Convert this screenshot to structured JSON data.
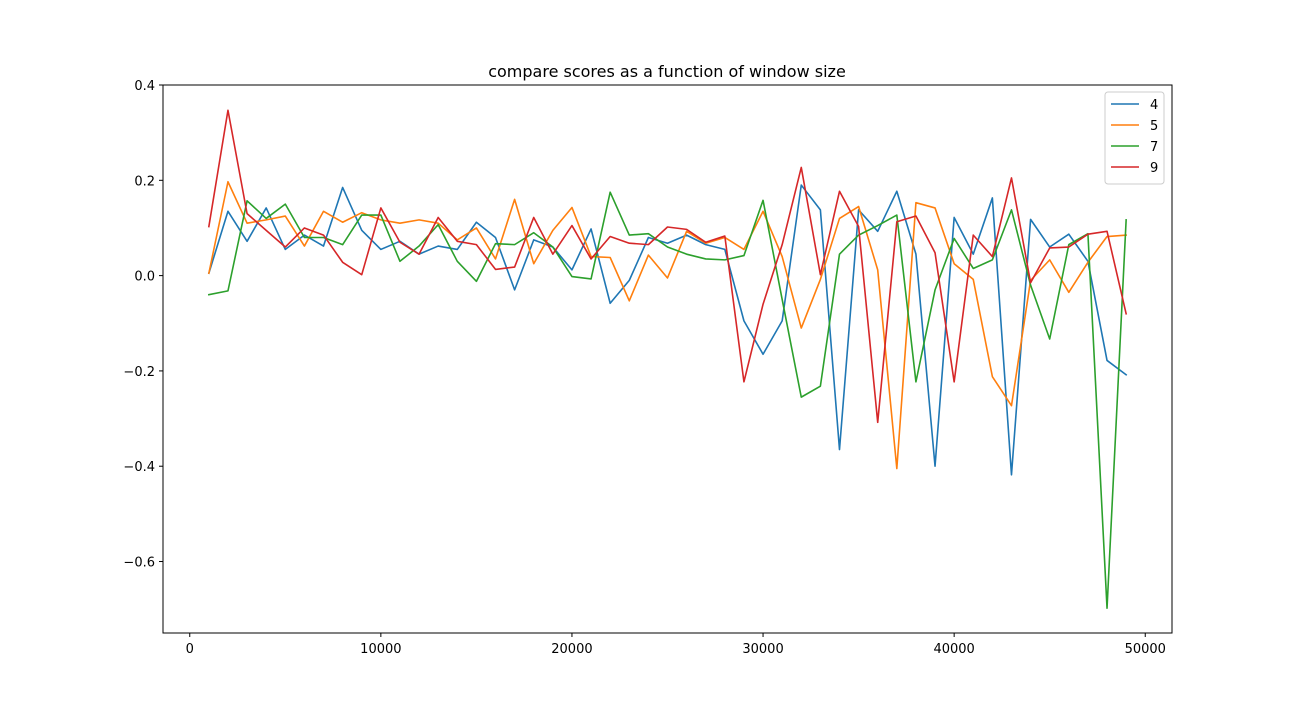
{
  "chart_data": {
    "type": "line",
    "title": "compare scores as a function of window size",
    "xlabel": "",
    "ylabel": "",
    "xlim": [
      -1400,
      51400
    ],
    "ylim": [
      -0.75,
      0.4
    ],
    "xticks": [
      0,
      10000,
      20000,
      30000,
      40000,
      50000
    ],
    "xtick_labels": [
      "0",
      "10000",
      "20000",
      "30000",
      "40000",
      "50000"
    ],
    "yticks": [
      0.4,
      0.2,
      0.0,
      -0.2,
      -0.4,
      -0.6
    ],
    "ytick_labels": [
      "0.4",
      "0.2",
      "0.0",
      "−0.2",
      "−0.4",
      "−0.6"
    ],
    "grid": false,
    "legend_position": "top-right",
    "x": [
      1000,
      2000,
      3000,
      4000,
      5000,
      6000,
      7000,
      8000,
      9000,
      10000,
      11000,
      12000,
      13000,
      14000,
      15000,
      16000,
      17000,
      18000,
      19000,
      20000,
      21000,
      22000,
      23000,
      24000,
      25000,
      26000,
      27000,
      28000,
      29000,
      30000,
      31000,
      32000,
      33000,
      34000,
      35000,
      36000,
      37000,
      38000,
      39000,
      40000,
      41000,
      42000,
      43000,
      44000,
      45000,
      46000,
      47000,
      48000,
      49000
    ],
    "series": [
      {
        "name": "4",
        "color": "#1f77b4",
        "values": [
          0.005,
          0.135,
          0.072,
          0.142,
          0.055,
          0.085,
          0.062,
          0.185,
          0.095,
          0.055,
          0.072,
          0.045,
          0.062,
          0.055,
          0.112,
          0.08,
          -0.03,
          0.075,
          0.06,
          0.012,
          0.098,
          -0.058,
          -0.01,
          0.08,
          0.068,
          0.085,
          0.065,
          0.055,
          -0.095,
          -0.165,
          -0.095,
          0.19,
          0.138,
          -0.365,
          0.138,
          0.093,
          0.177,
          0.045,
          -0.4,
          0.122,
          0.045,
          0.163,
          -0.418,
          0.118,
          0.06,
          0.087,
          0.03,
          -0.178,
          -0.208
        ]
      },
      {
        "name": "5",
        "color": "#ff7f0e",
        "values": [
          0.005,
          0.197,
          0.11,
          0.117,
          0.125,
          0.062,
          0.135,
          0.112,
          0.132,
          0.117,
          0.11,
          0.117,
          0.11,
          0.075,
          0.1,
          0.035,
          0.16,
          0.025,
          0.095,
          0.143,
          0.04,
          0.038,
          -0.053,
          0.043,
          -0.005,
          0.093,
          0.068,
          0.08,
          0.055,
          0.135,
          0.04,
          -0.11,
          -0.008,
          0.12,
          0.145,
          0.012,
          -0.405,
          0.153,
          0.142,
          0.025,
          -0.008,
          -0.212,
          -0.273,
          -0.01,
          0.033,
          -0.035,
          0.028,
          0.082,
          0.085
        ]
      },
      {
        "name": "7",
        "color": "#2ca02c",
        "values": [
          -0.04,
          -0.032,
          0.157,
          0.12,
          0.15,
          0.08,
          0.08,
          0.065,
          0.127,
          0.127,
          0.03,
          0.062,
          0.107,
          0.03,
          -0.012,
          0.067,
          0.065,
          0.09,
          0.06,
          -0.002,
          -0.007,
          0.175,
          0.085,
          0.088,
          0.06,
          0.045,
          0.035,
          0.033,
          0.042,
          0.158,
          -0.05,
          -0.255,
          -0.232,
          0.045,
          0.085,
          0.105,
          0.127,
          -0.223,
          -0.03,
          0.078,
          0.015,
          0.033,
          0.138,
          -0.02,
          -0.133,
          0.065,
          0.088,
          -0.698,
          0.117
        ]
      },
      {
        "name": "9",
        "color": "#d62728",
        "values": [
          0.103,
          0.347,
          0.13,
          0.095,
          0.06,
          0.1,
          0.085,
          0.028,
          0.002,
          0.142,
          0.07,
          0.045,
          0.122,
          0.072,
          0.065,
          0.013,
          0.018,
          0.122,
          0.045,
          0.105,
          0.035,
          0.082,
          0.068,
          0.065,
          0.102,
          0.097,
          0.07,
          0.083,
          -0.223,
          -0.06,
          0.065,
          0.227,
          0.002,
          0.177,
          0.103,
          -0.308,
          0.113,
          0.125,
          0.048,
          -0.223,
          0.085,
          0.04,
          0.205,
          -0.015,
          0.058,
          0.06,
          0.087,
          0.093,
          -0.08
        ]
      }
    ]
  }
}
